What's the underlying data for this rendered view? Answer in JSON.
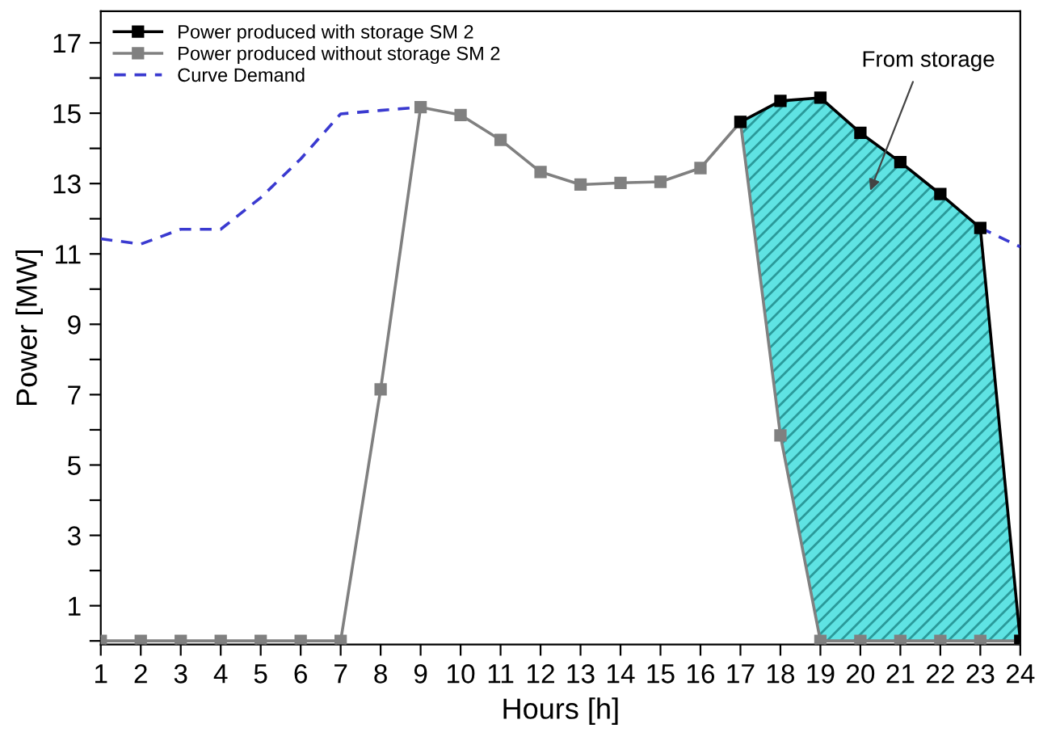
{
  "chart_data": {
    "type": "line",
    "xlabel": "Hours [h]",
    "ylabel": "Power [MW]",
    "x": [
      1,
      2,
      3,
      4,
      5,
      6,
      7,
      8,
      9,
      10,
      11,
      12,
      13,
      14,
      15,
      16,
      17,
      18,
      19,
      20,
      21,
      22,
      23,
      24
    ],
    "xlim": [
      1,
      24
    ],
    "xticks": [
      1,
      2,
      3,
      4,
      5,
      6,
      7,
      8,
      9,
      10,
      11,
      12,
      13,
      14,
      15,
      16,
      17,
      18,
      19,
      20,
      21,
      22,
      23,
      24
    ],
    "ylim": [
      -0.1,
      17.9
    ],
    "yticks": [
      {
        "value": 0,
        "label": null
      },
      1,
      {
        "value": 2,
        "label": null
      },
      3,
      {
        "value": 4,
        "label": null
      },
      5,
      {
        "value": 6,
        "label": null
      },
      7,
      {
        "value": 8,
        "label": null
      },
      9,
      {
        "value": 10,
        "label": null
      },
      11,
      {
        "value": 12,
        "label": null
      },
      13,
      {
        "value": 14,
        "label": null
      },
      15,
      {
        "value": 16,
        "label": null
      },
      17
    ],
    "grid": false,
    "legend": "top left",
    "series": [
      {
        "name": "Power produced with storage SM 2",
        "color": "#000000",
        "marker": "square",
        "line_style": "solid",
        "values": [
          null,
          null,
          null,
          null,
          null,
          null,
          null,
          null,
          null,
          null,
          null,
          null,
          null,
          null,
          null,
          null,
          14.75,
          15.35,
          15.44,
          14.44,
          13.61,
          12.7,
          11.74,
          0
        ],
        "lower": [
          null,
          null,
          null,
          null,
          null,
          null,
          null,
          null,
          null,
          null,
          null,
          null,
          null,
          null,
          null,
          null,
          14.75,
          5.84,
          0,
          0,
          0,
          0,
          0,
          0
        ],
        "upper": [
          null,
          null,
          null,
          null,
          null,
          null,
          null,
          null,
          null,
          null,
          null,
          null,
          null,
          null,
          null,
          null,
          14.75,
          15.35,
          15.44,
          14.44,
          13.61,
          12.7,
          11.74,
          0
        ]
      },
      {
        "name": "Power produced without storage SM 2",
        "color": "#808080",
        "marker": "square",
        "line_style": "solid",
        "values": [
          0,
          0,
          0,
          0,
          0,
          0,
          0,
          7.15,
          15.17,
          14.95,
          14.24,
          13.33,
          12.97,
          13.02,
          13.05,
          13.44,
          14.75,
          5.84,
          0,
          0,
          0,
          0,
          0,
          0
        ]
      },
      {
        "name": "Curve Demand",
        "color": "#3a3ad0",
        "marker": "none",
        "line_style": "dashed",
        "values": [
          11.43,
          11.28,
          11.7,
          11.7,
          12.6,
          13.7,
          14.98,
          15.08,
          15.17,
          null,
          null,
          null,
          null,
          null,
          null,
          null,
          null,
          null,
          null,
          null,
          null,
          null,
          11.74,
          11.2
        ]
      }
    ],
    "annotations": [
      "From storage"
    ]
  }
}
